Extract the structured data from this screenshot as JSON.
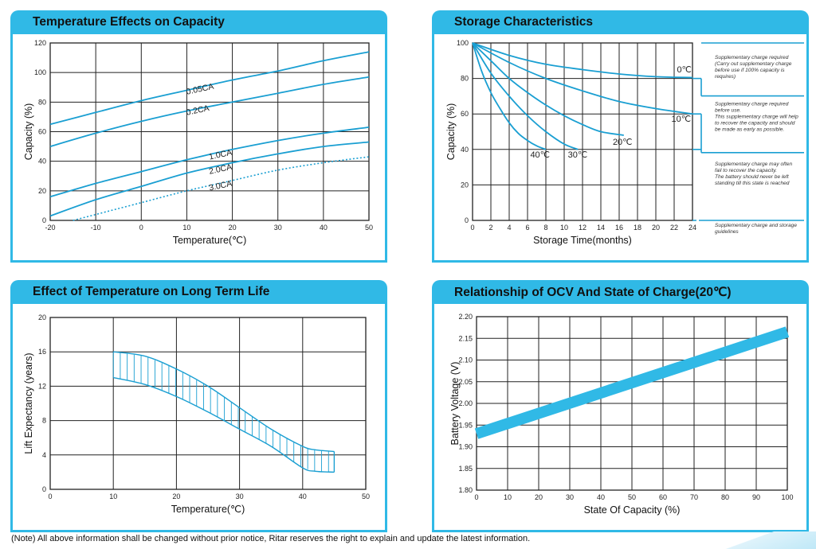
{
  "colors": {
    "accent": "#30b9e6",
    "curve": "#1a9fd2",
    "grid": "#222222"
  },
  "footnote": "(Note) All above information shall be changed without prior notice, Ritar reserves the right to explain and update the latest information.",
  "chart_data": [
    {
      "type": "line",
      "title": "Temperature Effects on Capacity",
      "xlabel": "Temperature(℃)",
      "ylabel": "Capacity  (%)",
      "xlim": [
        -20,
        50
      ],
      "ylim": [
        0,
        120
      ],
      "xticks": [
        -20,
        -10,
        0,
        10,
        20,
        30,
        40,
        50
      ],
      "yticks": [
        0,
        20,
        40,
        60,
        80,
        100,
        120
      ],
      "grid": true,
      "series": [
        {
          "name": "0.05CA",
          "x": [
            -20,
            -10,
            0,
            10,
            20,
            30,
            40,
            50
          ],
          "y": [
            65,
            73,
            81,
            88,
            95,
            101,
            108,
            114
          ]
        },
        {
          "name": "0.2CA",
          "x": [
            -20,
            -10,
            0,
            10,
            20,
            30,
            40,
            50
          ],
          "y": [
            50,
            59,
            67,
            74,
            80,
            86,
            92,
            97
          ]
        },
        {
          "name": "1.0CA",
          "x": [
            -20,
            -10,
            0,
            10,
            20,
            30,
            40,
            50
          ],
          "y": [
            16,
            25,
            33,
            41,
            48,
            54,
            59,
            63
          ]
        },
        {
          "name": "2.0CA",
          "x": [
            -20,
            -10,
            0,
            10,
            20,
            30,
            40,
            50
          ],
          "y": [
            3,
            14,
            23,
            32,
            39,
            45,
            50,
            53
          ]
        },
        {
          "name": "3.0CA",
          "x": [
            -15,
            -10,
            0,
            10,
            20,
            30,
            40,
            50
          ],
          "y": [
            0,
            4,
            12,
            20,
            27,
            34,
            39,
            43
          ],
          "style": "dotted"
        }
      ]
    },
    {
      "type": "line",
      "title": "Storage Characteristics",
      "xlabel": "Storage  Time(months)",
      "ylabel": "Capacity  (%)",
      "xlim": [
        0,
        24
      ],
      "ylim": [
        0,
        100
      ],
      "xticks": [
        0,
        2,
        4,
        6,
        8,
        10,
        12,
        14,
        16,
        18,
        20,
        22,
        24
      ],
      "yticks": [
        0,
        20,
        40,
        60,
        80,
        100
      ],
      "grid": true,
      "series": [
        {
          "name": "0℃",
          "x": [
            0,
            4,
            8,
            12,
            16,
            20,
            24
          ],
          "y": [
            100,
            93,
            88,
            85,
            82.5,
            81,
            80.5
          ]
        },
        {
          "name": "10℃",
          "x": [
            0,
            4,
            8,
            12,
            16,
            20,
            24
          ],
          "y": [
            100,
            89,
            80,
            73,
            67,
            63,
            60
          ]
        },
        {
          "name": "20℃",
          "x": [
            0,
            2,
            4,
            6,
            8,
            10,
            12,
            14,
            16.5
          ],
          "y": [
            100,
            90,
            80,
            72,
            65,
            59,
            54,
            50,
            48
          ]
        },
        {
          "name": "30℃",
          "x": [
            0,
            2,
            4,
            6,
            8,
            10,
            11.5
          ],
          "y": [
            100,
            83,
            70,
            59,
            50,
            43,
            40
          ]
        },
        {
          "name": "40℃",
          "x": [
            0,
            1,
            2,
            3,
            4,
            5,
            6,
            7,
            8
          ],
          "y": [
            100,
            84,
            72,
            63,
            55,
            49,
            45,
            42,
            40
          ]
        }
      ],
      "thresholds": [
        {
          "y": 80,
          "note": "Supplementary charge required (Carry out supplementary charge before use if 100% capacity is requires)"
        },
        {
          "y": 60,
          "note": "Supplementary charge required before use. This supplementary charge will help to recover the capacity and should be made  as early as possible."
        },
        {
          "y": 40,
          "note": "Supplementary charge may often fail to recover the capacity. The battery should never be left standing till this state is reached"
        },
        {
          "y": 0,
          "note": "Supplementary charge and storage guidelines"
        }
      ]
    },
    {
      "type": "area",
      "title": "Effect of Temperature on Long Term Life",
      "xlabel": "Temperature(℃)",
      "ylabel": "Lift Expectancy  (years)",
      "xlim": [
        0,
        50
      ],
      "ylim": [
        0,
        20
      ],
      "xticks": [
        0,
        10,
        20,
        30,
        40,
        50
      ],
      "yticks": [
        0,
        4,
        8,
        12,
        16,
        20
      ],
      "grid": true,
      "x": [
        10,
        15,
        20,
        25,
        30,
        35,
        40,
        42,
        45
      ],
      "upper": [
        16,
        15.5,
        14,
        12,
        9.5,
        7,
        5,
        4.6,
        4.4
      ],
      "lower": [
        13,
        12.2,
        10.8,
        9,
        7,
        5,
        2.5,
        2.1,
        2.0
      ]
    },
    {
      "type": "line",
      "title": "Relationship of OCV And State of Charge(20℃)",
      "xlabel": "State Of Capacity (%)",
      "ylabel": "Battery Voltage (V)",
      "xlim": [
        0,
        100
      ],
      "ylim": [
        1.8,
        2.2
      ],
      "xticks": [
        0,
        10,
        20,
        30,
        40,
        50,
        60,
        70,
        80,
        90,
        100
      ],
      "yticks": [
        1.8,
        1.85,
        1.9,
        1.95,
        2.0,
        2.05,
        2.1,
        2.15,
        2.2
      ],
      "grid": true,
      "series": [
        {
          "name": "",
          "x": [
            0,
            100
          ],
          "y": [
            1.93,
            2.165
          ],
          "band": true
        }
      ]
    }
  ]
}
